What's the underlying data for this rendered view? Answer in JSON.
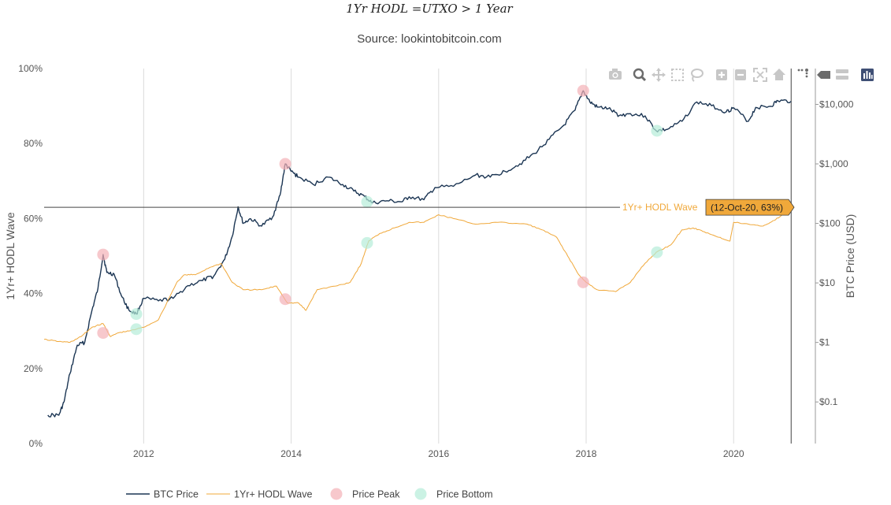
{
  "chart_data": {
    "type": "line",
    "title": "1Yr HODL =UTXO > 1 Year",
    "subtitle": "Source: lookintobitcoin.com",
    "x_range": [
      2010.65,
      2020.82
    ],
    "x_ticks": [
      {
        "value": 2012,
        "label": "2012"
      },
      {
        "value": 2014,
        "label": "2014"
      },
      {
        "value": 2016,
        "label": "2016"
      },
      {
        "value": 2018,
        "label": "2018"
      },
      {
        "value": 2020,
        "label": "2020"
      }
    ],
    "y_left": {
      "title": "1Yr+ HODL Wave",
      "range": [
        0,
        100
      ],
      "ticks": [
        {
          "value": 0,
          "label": "0%"
        },
        {
          "value": 20,
          "label": "20%"
        },
        {
          "value": 40,
          "label": "40%"
        },
        {
          "value": 60,
          "label": "60%"
        },
        {
          "value": 80,
          "label": "80%"
        },
        {
          "value": 100,
          "label": "100%"
        }
      ]
    },
    "y_right": {
      "title": "BTC Price (USD)",
      "scale": "log",
      "range": [
        0.02,
        40000
      ],
      "ticks": [
        {
          "value": 0.1,
          "label": "$0.1"
        },
        {
          "value": 1,
          "label": "$1"
        },
        {
          "value": 10,
          "label": "$10"
        },
        {
          "value": 100,
          "label": "$100"
        },
        {
          "value": 1000,
          "label": "$1,000"
        },
        {
          "value": 10000,
          "label": "$10,000"
        }
      ]
    },
    "series": [
      {
        "name": "BTC Price",
        "axis": "right",
        "color": "#1b3553",
        "points": [
          [
            2010.7,
            0.06
          ],
          [
            2010.85,
            0.06
          ],
          [
            2010.92,
            0.1
          ],
          [
            2011.0,
            0.3
          ],
          [
            2011.1,
            0.9
          ],
          [
            2011.2,
            1.0
          ],
          [
            2011.3,
            3.5
          ],
          [
            2011.38,
            8
          ],
          [
            2011.45,
            30
          ],
          [
            2011.5,
            15
          ],
          [
            2011.6,
            14
          ],
          [
            2011.7,
            6
          ],
          [
            2011.8,
            3.5
          ],
          [
            2011.9,
            3.0
          ],
          [
            2012.0,
            5.5
          ],
          [
            2012.2,
            5.0
          ],
          [
            2012.4,
            5.5
          ],
          [
            2012.6,
            9
          ],
          [
            2012.8,
            11
          ],
          [
            2012.95,
            13
          ],
          [
            2013.1,
            25
          ],
          [
            2013.2,
            60
          ],
          [
            2013.28,
            190
          ],
          [
            2013.35,
            100
          ],
          [
            2013.45,
            120
          ],
          [
            2013.6,
            90
          ],
          [
            2013.75,
            130
          ],
          [
            2013.85,
            300
          ],
          [
            2013.92,
            1000
          ],
          [
            2014.0,
            750
          ],
          [
            2014.1,
            600
          ],
          [
            2014.3,
            450
          ],
          [
            2014.5,
            600
          ],
          [
            2014.7,
            450
          ],
          [
            2014.85,
            350
          ],
          [
            2015.0,
            280
          ],
          [
            2015.1,
            220
          ],
          [
            2015.3,
            240
          ],
          [
            2015.5,
            230
          ],
          [
            2015.6,
            280
          ],
          [
            2015.8,
            250
          ],
          [
            2015.95,
            400
          ],
          [
            2016.2,
            420
          ],
          [
            2016.5,
            650
          ],
          [
            2016.7,
            600
          ],
          [
            2016.9,
            750
          ],
          [
            2017.1,
            1000
          ],
          [
            2017.3,
            1500
          ],
          [
            2017.5,
            2600
          ],
          [
            2017.7,
            4500
          ],
          [
            2017.85,
            8000
          ],
          [
            2017.96,
            17000
          ],
          [
            2018.05,
            11000
          ],
          [
            2018.15,
            9000
          ],
          [
            2018.3,
            8500
          ],
          [
            2018.45,
            6500
          ],
          [
            2018.6,
            7000
          ],
          [
            2018.8,
            6400
          ],
          [
            2018.95,
            3600
          ],
          [
            2019.1,
            3800
          ],
          [
            2019.3,
            5200
          ],
          [
            2019.5,
            11000
          ],
          [
            2019.7,
            9500
          ],
          [
            2019.9,
            7500
          ],
          [
            2020.0,
            8800
          ],
          [
            2020.2,
            5200
          ],
          [
            2020.3,
            8900
          ],
          [
            2020.5,
            9300
          ],
          [
            2020.6,
            11500
          ],
          [
            2020.78,
            11300
          ]
        ]
      },
      {
        "name": "1Yr+ HODL Wave",
        "axis": "left",
        "color": "#f0a83a",
        "points": [
          [
            2010.65,
            27.8
          ],
          [
            2010.85,
            27.2
          ],
          [
            2011.0,
            27.0
          ],
          [
            2011.15,
            28.5
          ],
          [
            2011.3,
            31
          ],
          [
            2011.45,
            32
          ],
          [
            2011.55,
            28.5
          ],
          [
            2011.65,
            29.5
          ],
          [
            2011.8,
            30
          ],
          [
            2012.0,
            31
          ],
          [
            2012.2,
            33
          ],
          [
            2012.45,
            43
          ],
          [
            2012.55,
            45
          ],
          [
            2012.7,
            45
          ],
          [
            2012.9,
            47
          ],
          [
            2013.05,
            48
          ],
          [
            2013.2,
            43
          ],
          [
            2013.35,
            41
          ],
          [
            2013.6,
            41
          ],
          [
            2013.8,
            42
          ],
          [
            2013.95,
            37.5
          ],
          [
            2014.1,
            37.5
          ],
          [
            2014.2,
            35.5
          ],
          [
            2014.35,
            41
          ],
          [
            2014.6,
            42
          ],
          [
            2014.8,
            43
          ],
          [
            2014.95,
            48
          ],
          [
            2015.05,
            54
          ],
          [
            2015.2,
            56
          ],
          [
            2015.4,
            57.5
          ],
          [
            2015.6,
            59
          ],
          [
            2015.8,
            59
          ],
          [
            2016.0,
            61
          ],
          [
            2016.2,
            60
          ],
          [
            2016.5,
            58.5
          ],
          [
            2016.8,
            59
          ],
          [
            2017.2,
            58.5
          ],
          [
            2017.4,
            57
          ],
          [
            2017.6,
            55
          ],
          [
            2017.75,
            50
          ],
          [
            2017.9,
            45
          ],
          [
            2018.0,
            43
          ],
          [
            2018.15,
            41
          ],
          [
            2018.4,
            40.5
          ],
          [
            2018.6,
            43
          ],
          [
            2018.75,
            47
          ],
          [
            2018.95,
            51
          ],
          [
            2019.15,
            53
          ],
          [
            2019.3,
            57
          ],
          [
            2019.45,
            57.5
          ],
          [
            2019.6,
            56.5
          ],
          [
            2019.8,
            55
          ],
          [
            2019.95,
            54
          ],
          [
            2020.0,
            59
          ],
          [
            2020.2,
            58.5
          ],
          [
            2020.4,
            58
          ],
          [
            2020.55,
            59.5
          ],
          [
            2020.7,
            61.5
          ],
          [
            2020.78,
            63
          ]
        ]
      }
    ],
    "markers": [
      {
        "name": "Price Peak",
        "color": "#f4b0b6",
        "points": [
          {
            "x": 2011.45,
            "price": 30
          },
          {
            "x": 2011.45,
            "hodl": 29.5
          },
          {
            "x": 2013.92,
            "price": 1000
          },
          {
            "x": 2013.92,
            "hodl": 38.5
          },
          {
            "x": 2017.96,
            "price": 17000
          },
          {
            "x": 2017.96,
            "hodl": 43
          }
        ]
      },
      {
        "name": "Price Bottom",
        "color": "#b5ecd8",
        "points": [
          {
            "x": 2011.9,
            "price": 3.0
          },
          {
            "x": 2011.9,
            "hodl": 30.5
          },
          {
            "x": 2015.03,
            "price": 230
          },
          {
            "x": 2015.03,
            "hodl": 53.5
          },
          {
            "x": 2018.96,
            "price": 3600
          },
          {
            "x": 2018.96,
            "hodl": 51
          }
        ]
      }
    ],
    "hover": {
      "series_label": "1Yr+ HODL Wave",
      "text": "(12-Oct-20, 63%)",
      "x": 2020.78,
      "value": 63
    },
    "legend": {
      "placement": "bottom-left",
      "entries": [
        "BTC Price",
        "1Yr+ HODL Wave",
        "Price Peak",
        "Price Bottom"
      ]
    },
    "gridlines": "vertical"
  },
  "modebar": [
    {
      "icon": "camera-icon",
      "tooltip": "Download plot as a png"
    },
    {
      "icon": "zoom-icon",
      "tooltip": "Zoom"
    },
    {
      "icon": "pan-icon",
      "tooltip": "Pan"
    },
    {
      "icon": "box-select-icon",
      "tooltip": "Box Select"
    },
    {
      "icon": "lasso-select-icon",
      "tooltip": "Lasso Select"
    },
    {
      "icon": "zoom-in-icon",
      "tooltip": "Zoom in"
    },
    {
      "icon": "zoom-out-icon",
      "tooltip": "Zoom out"
    },
    {
      "icon": "autoscale-icon",
      "tooltip": "Autoscale"
    },
    {
      "icon": "reset-axes-icon",
      "tooltip": "Reset axes"
    },
    {
      "icon": "spike-lines-icon",
      "tooltip": "Toggle Spike Lines"
    },
    {
      "icon": "hover-closest-icon",
      "tooltip": "Show closest data on hover"
    },
    {
      "icon": "hover-compare-icon",
      "tooltip": "Compare data on hover"
    },
    {
      "icon": "plotly-logo-icon",
      "tooltip": "Produced with Plotly"
    }
  ]
}
